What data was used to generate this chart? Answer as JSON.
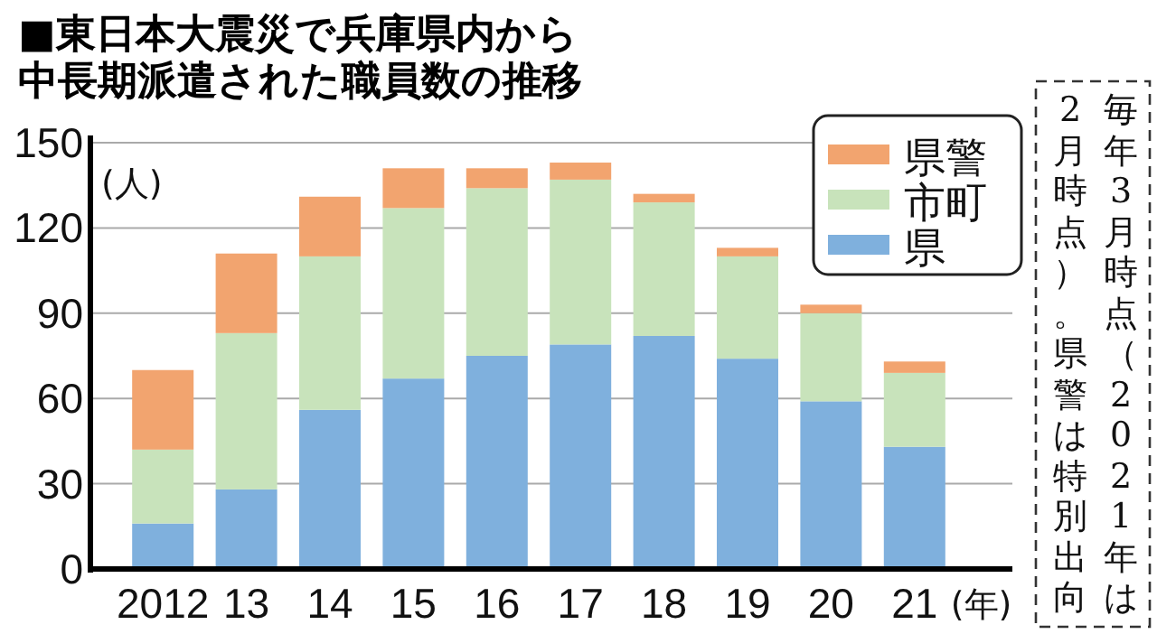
{
  "chart_data": {
    "type": "bar",
    "stacked": true,
    "title": "■東日本大震災で兵庫県内から中長期派遣された職員数の推移",
    "ylabel": "(人)",
    "xlabel": "(年)",
    "categories": [
      "2012",
      "13",
      "14",
      "15",
      "16",
      "17",
      "18",
      "19",
      "20",
      "21"
    ],
    "series": [
      {
        "name": "県",
        "color": "#7fb0dd",
        "values": [
          16,
          28,
          56,
          67,
          75,
          79,
          82,
          74,
          59,
          43
        ]
      },
      {
        "name": "市町",
        "color": "#c8e3bb",
        "values": [
          26,
          55,
          54,
          60,
          59,
          58,
          47,
          36,
          31,
          26
        ]
      },
      {
        "name": "県警",
        "color": "#f2a46f",
        "values": [
          28,
          28,
          21,
          14,
          7,
          6,
          3,
          3,
          3,
          4
        ]
      }
    ],
    "ylim": [
      0,
      150
    ],
    "yticks": [
      0,
      30,
      60,
      90,
      120,
      150
    ],
    "grid": "y",
    "legend": "top right",
    "annotations": [
      "毎年3月時点（2021年は2月時点）。県警は特別出向"
    ]
  }
}
